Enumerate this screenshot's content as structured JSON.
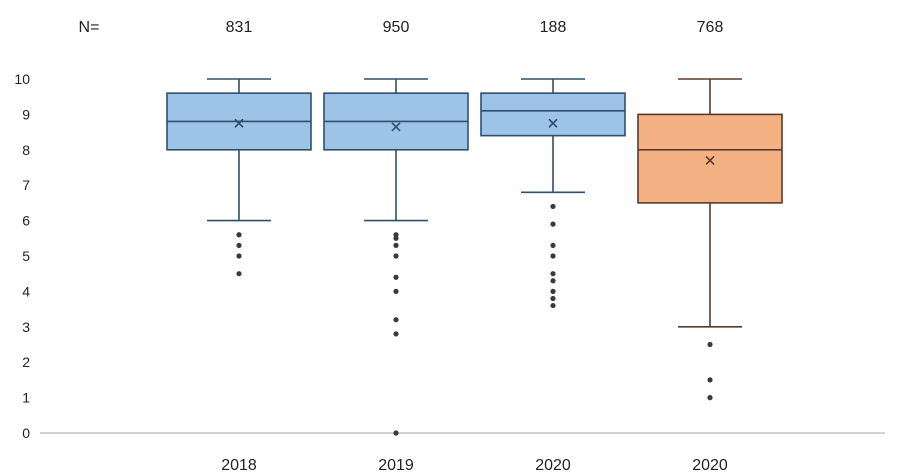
{
  "chart_data": {
    "type": "boxplot",
    "n_prefix": "N=",
    "categories": [
      "2018",
      "2019",
      "2020",
      "2020"
    ],
    "n_values": [
      "831",
      "950",
      "188",
      "768"
    ],
    "ylim": [
      0,
      10
    ],
    "yticks": [
      "0",
      "1",
      "2",
      "3",
      "4",
      "5",
      "6",
      "7",
      "8",
      "9",
      "10"
    ],
    "grid": false,
    "boxes": [
      {
        "min": 6.0,
        "q1": 8.0,
        "median": 8.8,
        "q3": 9.6,
        "max": 10,
        "mean": 8.75,
        "outliers": [
          5.6,
          5.3,
          5.0,
          4.5
        ],
        "color": "#9dc3e6",
        "stroke": "#2f4f6f"
      },
      {
        "min": 6.0,
        "q1": 8.0,
        "median": 8.8,
        "q3": 9.6,
        "max": 10,
        "mean": 8.65,
        "outliers": [
          5.6,
          5.5,
          5.3,
          5.0,
          4.4,
          4.0,
          3.2,
          2.8,
          0
        ],
        "color": "#9dc3e6",
        "stroke": "#2f4f6f"
      },
      {
        "min": 6.8,
        "q1": 8.4,
        "median": 9.1,
        "q3": 9.6,
        "max": 10,
        "mean": 8.75,
        "outliers": [
          6.4,
          5.9,
          5.3,
          5.0,
          4.5,
          4.3,
          4.0,
          3.8,
          3.6
        ],
        "color": "#9dc3e6",
        "stroke": "#2f4f6f"
      },
      {
        "min": 3.0,
        "q1": 6.5,
        "median": 8.0,
        "q3": 9.0,
        "max": 10,
        "mean": 7.7,
        "outliers": [
          2.5,
          1.5,
          1.0
        ],
        "color": "#f4b183",
        "stroke": "#5a3a2a"
      }
    ]
  }
}
